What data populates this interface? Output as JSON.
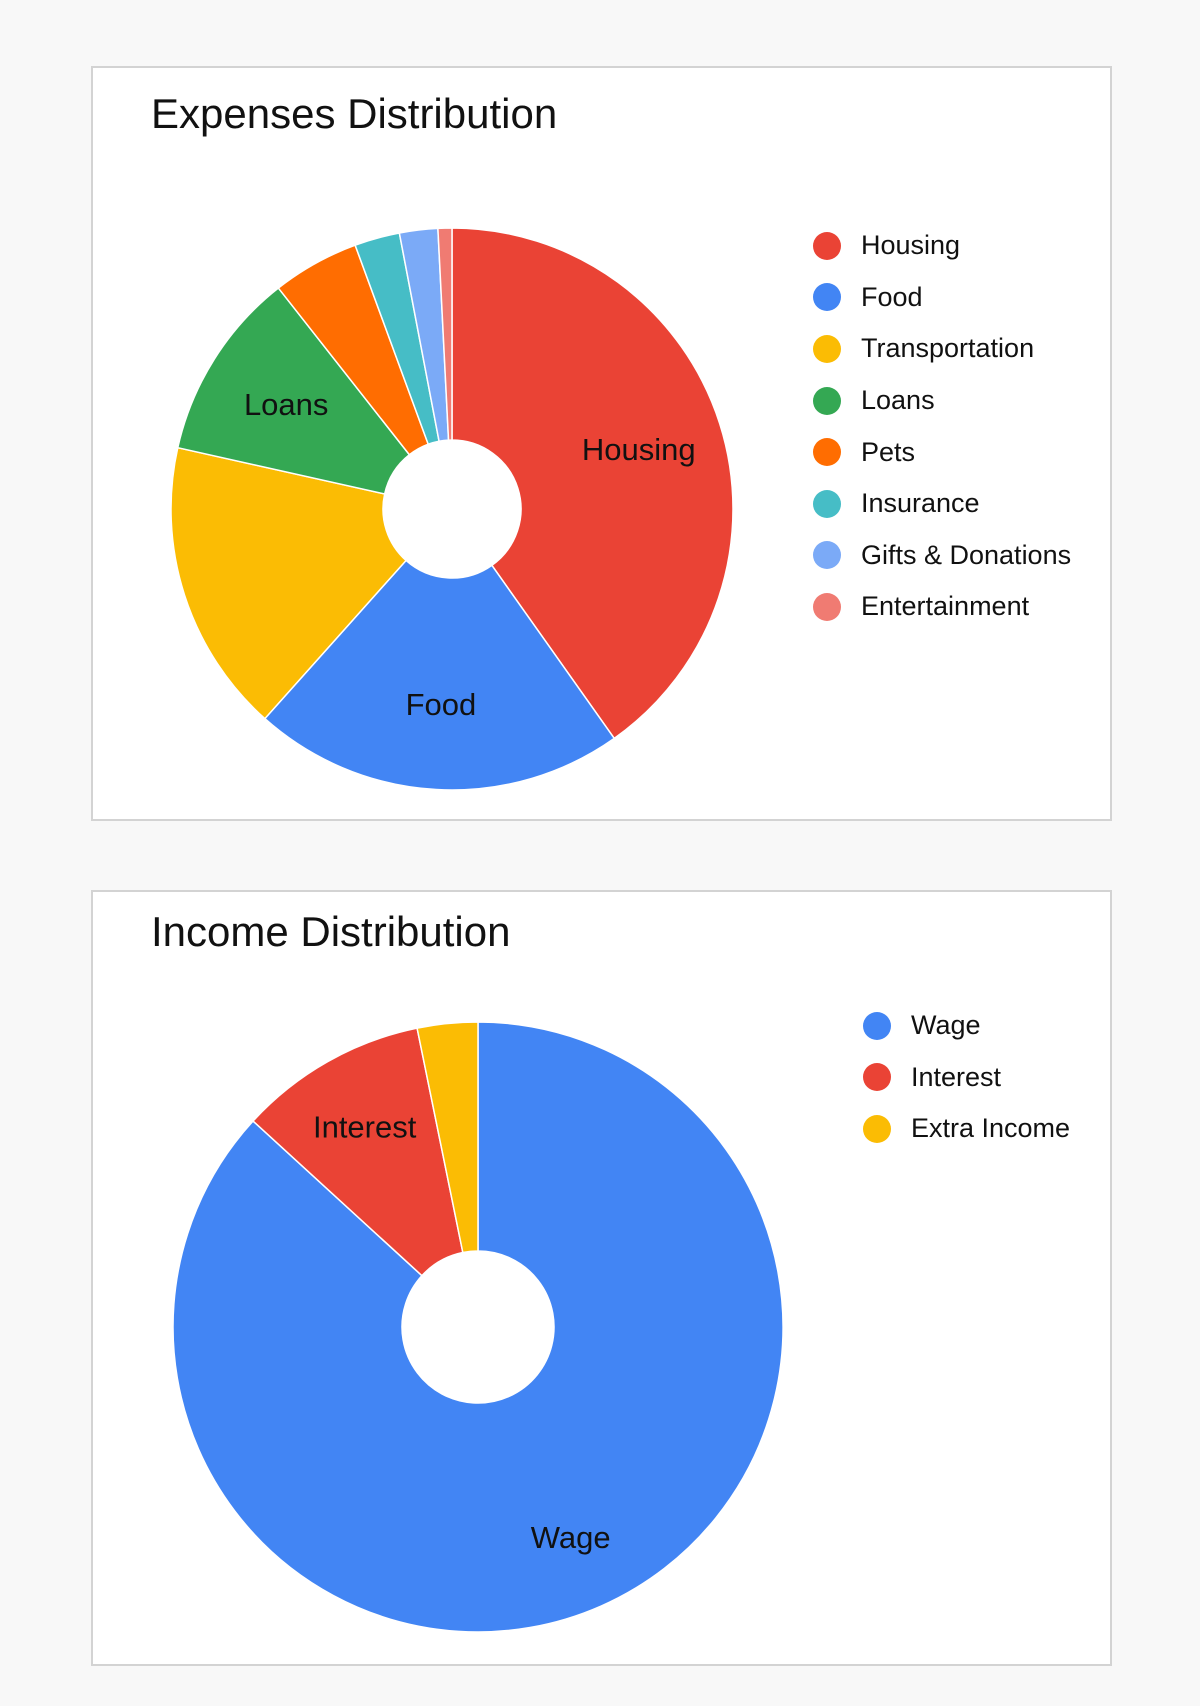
{
  "chart_data": [
    {
      "type": "pie",
      "title": "Expenses Distribution",
      "donut": true,
      "legend_position": "right",
      "categories": [
        "Housing",
        "Food",
        "Transportation",
        "Loans",
        "Pets",
        "Insurance",
        "Gifts & Donations",
        "Entertainment"
      ],
      "values": [
        40.2,
        21.4,
        16.9,
        10.9,
        5.0,
        2.6,
        2.2,
        0.8
      ],
      "colors": [
        "#ea4335",
        "#4285f4",
        "#fbbc04",
        "#34a853",
        "#ff6d01",
        "#46bdc6",
        "#7baaf7",
        "#f07b72"
      ],
      "slice_labels": [
        "Housing",
        "Food",
        "",
        "Loans",
        "",
        "",
        "",
        ""
      ]
    },
    {
      "type": "pie",
      "title": "Income Distribution",
      "donut": true,
      "legend_position": "right",
      "categories": [
        "Wage",
        "Interest",
        "Extra Income"
      ],
      "values": [
        86.8,
        10.0,
        3.2
      ],
      "colors": [
        "#4285f4",
        "#ea4335",
        "#fbbc04"
      ],
      "slice_labels": [
        "Wage",
        "Interest",
        ""
      ]
    }
  ]
}
